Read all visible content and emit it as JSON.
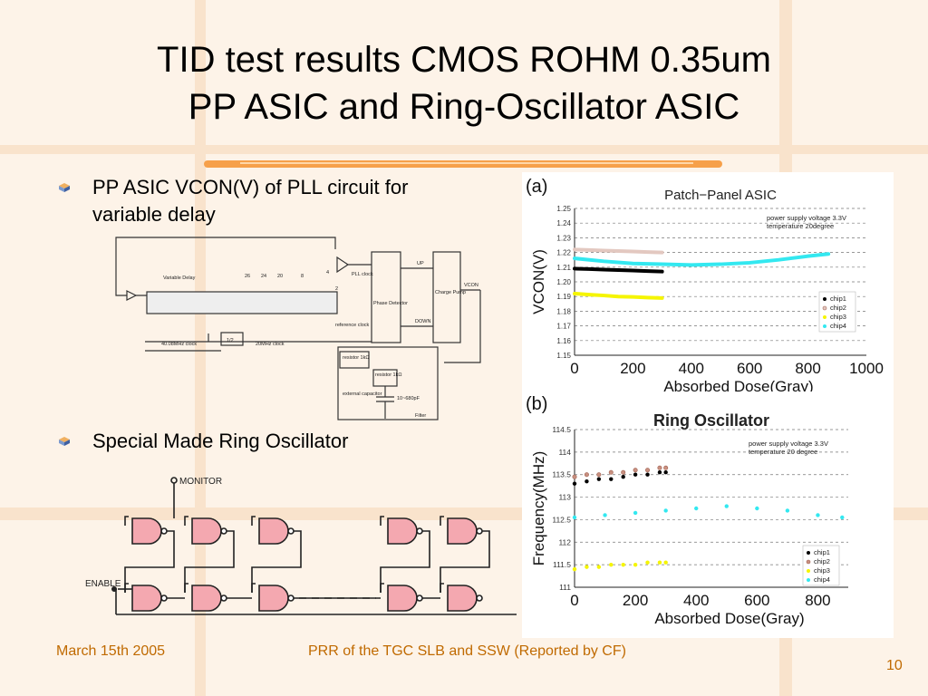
{
  "title": {
    "line1": "TID test results CMOS ROHM 0.35um",
    "line2": "PP ASIC and Ring-Oscillator ASIC"
  },
  "bullets": [
    {
      "line1": "PP ASIC VCON(V)  of PLL circuit for",
      "line2": "variable delay"
    },
    {
      "line1": "Special Made Ring Oscillator"
    }
  ],
  "pll_diagram": {
    "labels": [
      "Variable Delay",
      "PLL clock",
      "Phase Detector",
      "UP",
      "DOWN",
      "Charge Pump",
      "VCON",
      "reference clock",
      "40.08MHz clock",
      "1/2",
      "20MHz clock",
      "resistor 1kΩ",
      "resistor 1kΩ",
      "external capacitor",
      "10~680pF",
      "Filter",
      "26",
      "24",
      "20",
      "8",
      "4",
      "2"
    ]
  },
  "ring_diagram": {
    "labels": [
      "MONITOR",
      "ENABLE"
    ]
  },
  "chart_data": [
    {
      "type": "scatter",
      "panel_label": "(a)",
      "title": "Patch−Panel ASIC",
      "xlabel": "Absorbed Dose(Gray)",
      "ylabel": "VCON(V)",
      "xlim": [
        0,
        1000
      ],
      "ylim": [
        1.15,
        1.25
      ],
      "xticks": [
        "0",
        "200",
        "400",
        "600",
        "800",
        "1000"
      ],
      "yticks": [
        "1.15",
        "1.16",
        "1.17",
        "1.18",
        "1.19",
        "1.20",
        "1.21",
        "1.22",
        "1.23",
        "1.24",
        "1.25"
      ],
      "annotation": [
        "power supply voltage 3.3V",
        "temperature 20degree"
      ],
      "legend_position": "right",
      "grid": true,
      "series": [
        {
          "name": "chip1",
          "color": "#000000",
          "x": [
            0,
            50,
            100,
            150,
            200,
            250,
            300
          ],
          "y": [
            1.209,
            1.2087,
            1.2083,
            1.208,
            1.2077,
            1.2073,
            1.207
          ]
        },
        {
          "name": "chip2",
          "color": "#e3c8c0",
          "x": [
            0,
            50,
            100,
            150,
            200,
            250,
            300
          ],
          "y": [
            1.222,
            1.2217,
            1.2213,
            1.221,
            1.2207,
            1.2203,
            1.22
          ]
        },
        {
          "name": "chip3",
          "color": "#f5f500",
          "x": [
            0,
            50,
            100,
            150,
            200,
            250,
            300
          ],
          "y": [
            1.192,
            1.1913,
            1.1907,
            1.19,
            1.1897,
            1.1893,
            1.189
          ]
        },
        {
          "name": "chip4",
          "color": "#33e8f0",
          "x": [
            0,
            100,
            200,
            300,
            400,
            500,
            600,
            700,
            800,
            870
          ],
          "y": [
            1.216,
            1.214,
            1.2125,
            1.212,
            1.2115,
            1.212,
            1.213,
            1.215,
            1.2175,
            1.219
          ]
        }
      ]
    },
    {
      "type": "scatter",
      "panel_label": "(b)",
      "title": "Ring Oscillator",
      "xlabel": "Absorbed Dose(Gray)",
      "ylabel": "Frequency(MHz)",
      "xlim": [
        0,
        900
      ],
      "ylim": [
        111,
        114.5
      ],
      "xticks": [
        "0",
        "200",
        "400",
        "600",
        "800"
      ],
      "yticks": [
        "111",
        "111.5",
        "112",
        "112.5",
        "113",
        "113.5",
        "114",
        "114.5"
      ],
      "annotation": [
        "power supply voltage 3.3V",
        "temperature 20 degree"
      ],
      "legend_position": "right",
      "grid": true,
      "series": [
        {
          "name": "chip1",
          "color": "#000000",
          "x": [
            0,
            40,
            80,
            120,
            160,
            200,
            240,
            280,
            300
          ],
          "y": [
            113.3,
            113.35,
            113.4,
            113.4,
            113.45,
            113.5,
            113.5,
            113.55,
            113.55
          ]
        },
        {
          "name": "chip2",
          "color": "#c89080",
          "x": [
            0,
            40,
            80,
            120,
            160,
            200,
            240,
            280,
            300
          ],
          "y": [
            113.45,
            113.5,
            113.5,
            113.55,
            113.55,
            113.6,
            113.6,
            113.65,
            113.65
          ]
        },
        {
          "name": "chip3",
          "color": "#f5f500",
          "x": [
            0,
            40,
            80,
            120,
            160,
            200,
            240,
            280,
            300
          ],
          "y": [
            111.4,
            111.45,
            111.45,
            111.5,
            111.5,
            111.5,
            111.55,
            111.55,
            111.55
          ]
        },
        {
          "name": "chip4",
          "color": "#33e8f0",
          "x": [
            0,
            100,
            200,
            300,
            400,
            500,
            600,
            700,
            800,
            880
          ],
          "y": [
            112.55,
            112.6,
            112.65,
            112.7,
            112.75,
            112.8,
            112.75,
            112.7,
            112.6,
            112.55
          ]
        }
      ]
    }
  ],
  "footer": {
    "date": "March 15th 2005",
    "center": "PRR of the TGC SLB and SSW (Reported by CF)",
    "page": "10"
  }
}
